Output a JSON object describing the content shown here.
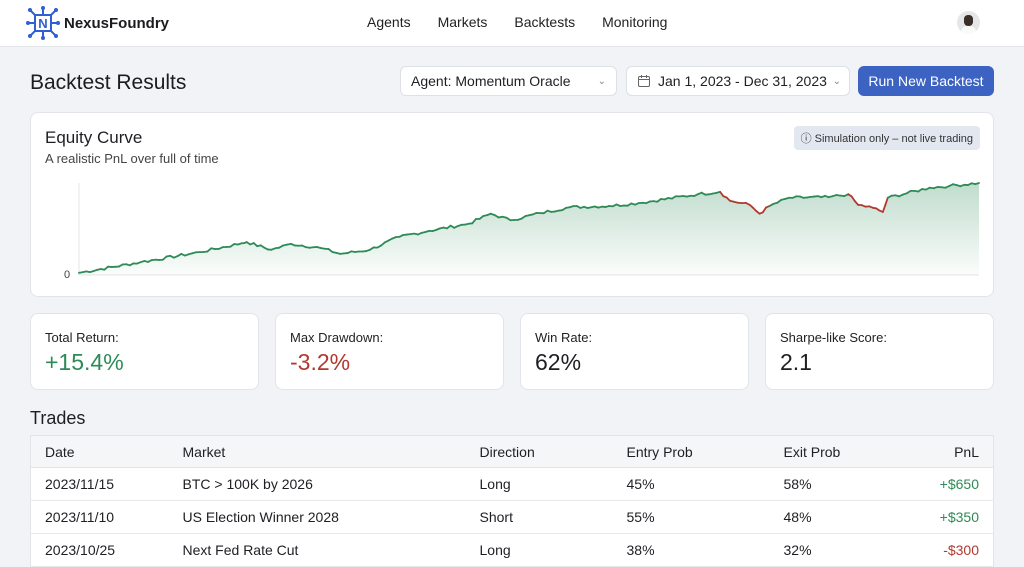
{
  "brand": {
    "name": "NexusFoundry"
  },
  "nav": [
    "Agents",
    "Markets",
    "Backtests",
    "Monitoring"
  ],
  "page_title": "Backtest Results",
  "agent_select": "Agent: Momentum Oracle",
  "date_range": "Jan 1, 2023 - Dec 31, 2023",
  "run_button": "Run New Backtest",
  "equity": {
    "title": "Equity Curve",
    "subtitle": "A realistic PnL over full of time",
    "badge": "Simulation only – not live trading",
    "y_tick": "0"
  },
  "colors": {
    "up": "#2e8b57",
    "down": "#b03a2e",
    "accent": "#3c62c2"
  },
  "chart_data": {
    "type": "line",
    "title": "Equity Curve",
    "xlabel": "",
    "ylabel": "",
    "ylim": [
      0,
      15.4
    ],
    "xlim": [
      0,
      365
    ],
    "x": [
      0,
      25,
      49,
      66,
      68,
      78,
      86,
      98,
      106,
      118,
      130,
      142,
      158,
      167,
      175,
      187,
      199,
      215,
      227,
      251,
      260,
      264,
      272,
      276,
      280,
      288,
      304,
      312,
      316,
      322,
      326,
      328,
      345,
      353,
      365
    ],
    "y": [
      0.2,
      2.0,
      3.7,
      5.2,
      5.4,
      4.1,
      5.1,
      4.4,
      3.4,
      4.1,
      6.3,
      7.3,
      8.5,
      10.2,
      9.1,
      10.3,
      11.3,
      11.5,
      12.0,
      13.5,
      13.9,
      12.4,
      11.7,
      10.2,
      11.5,
      12.9,
      13.0,
      13.5,
      11.7,
      11.2,
      10.5,
      12.9,
      14.6,
      14.9,
      15.4
    ],
    "drawdowns": [
      [
        260,
        280
      ],
      [
        312,
        328
      ]
    ]
  },
  "stats": [
    {
      "label": "Total Return:",
      "value": "+15.4%",
      "color": "#2e8b57"
    },
    {
      "label": "Max Drawdown:",
      "value": "-3.2%",
      "color": "#b03a2e"
    },
    {
      "label": "Win Rate:",
      "value": "62%",
      "color": "#1d1f23"
    },
    {
      "label": "Sharpe-like Score:",
      "value": "2.1",
      "color": "#1d1f23"
    }
  ],
  "trades": {
    "title": "Trades",
    "headers": [
      "Date",
      "Market",
      "Direction",
      "Entry Prob",
      "Exit Prob",
      "PnL"
    ],
    "rows": [
      [
        "2023/11/15",
        "BTC > 100K by 2026",
        "Long",
        "45%",
        "58%",
        "+$650"
      ],
      [
        "2023/11/10",
        "US Election Winner 2028",
        "Short",
        "55%",
        "48%",
        "+$350"
      ],
      [
        "2023/10/25",
        "Next Fed Rate Cut",
        "Long",
        "38%",
        "32%",
        "-$300"
      ]
    ]
  }
}
